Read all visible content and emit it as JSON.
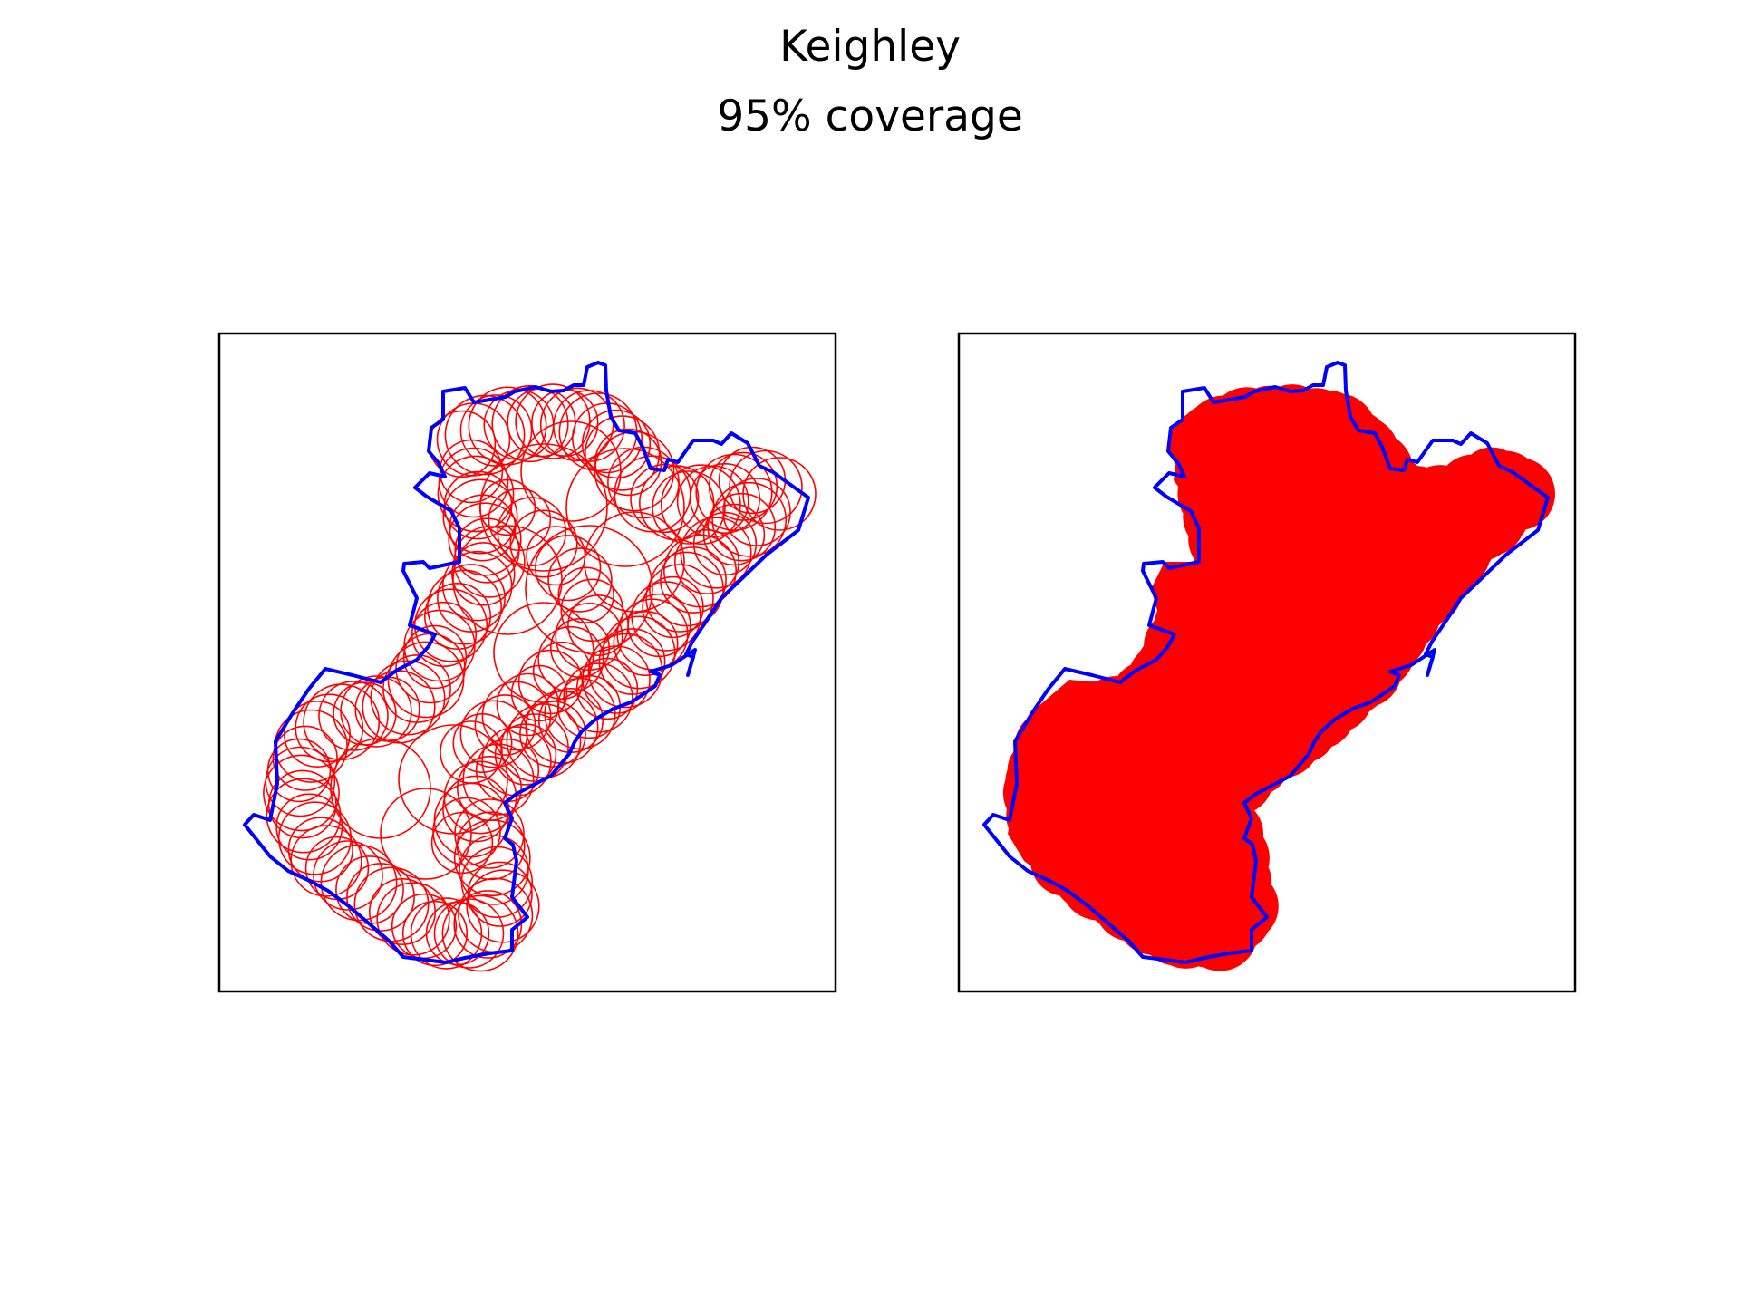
{
  "figure": {
    "title": "Keighley",
    "subtitle": "95% coverage"
  },
  "colors": {
    "boundary": "#0000ff",
    "circles": "#ff0000",
    "coverage_fill": "#ff0000",
    "frame": "#000000",
    "background": "#ffffff"
  },
  "panels": [
    {
      "id": "left",
      "style": "outlined circles"
    },
    {
      "id": "right",
      "style": "filled coverage"
    }
  ]
}
